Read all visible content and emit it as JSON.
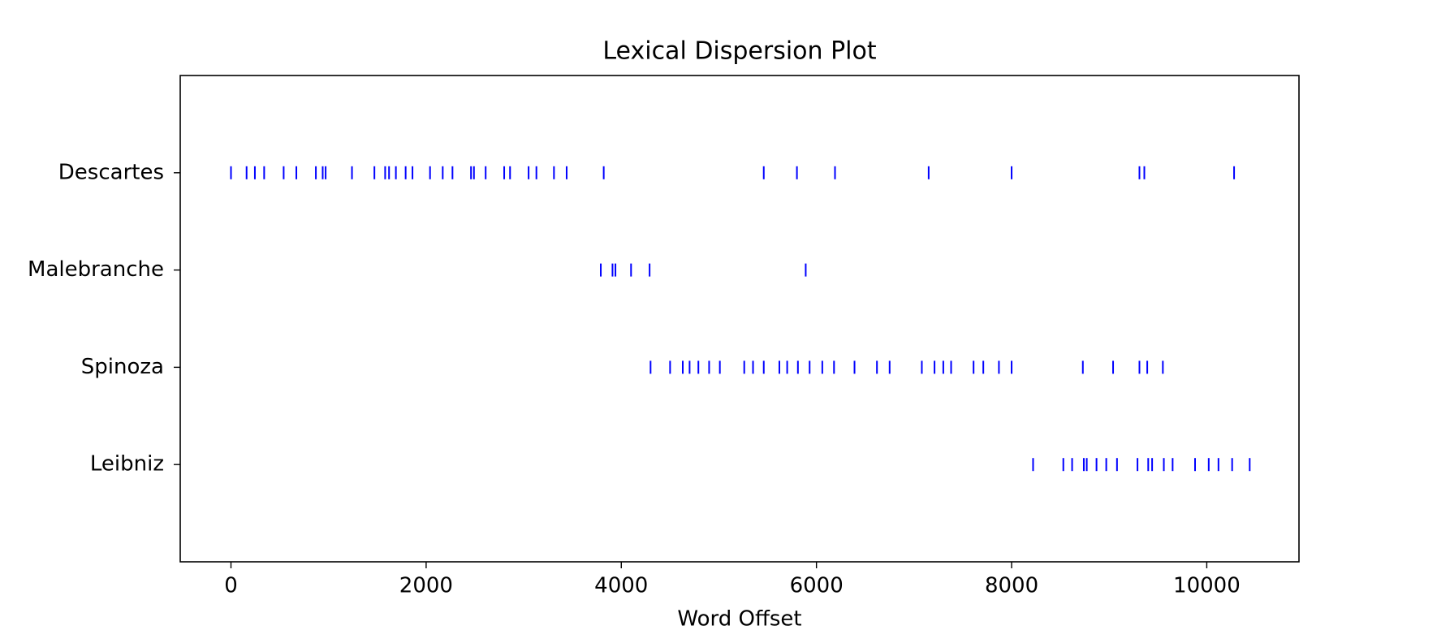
{
  "chart_data": {
    "type": "dispersion",
    "title": "Lexical Dispersion Plot",
    "x_label": "Word Offset",
    "xlim": [
      -520,
      10945
    ],
    "xticks": [
      0,
      2000,
      4000,
      6000,
      8000,
      10000
    ],
    "label_color": "#0000ff",
    "series": [
      {
        "name": "Descartes",
        "color": "#0000ff",
        "values": [
          0,
          160,
          245,
          340,
          540,
          670,
          870,
          940,
          970,
          1240,
          1470,
          1580,
          1620,
          1690,
          1790,
          1860,
          2040,
          2170,
          2270,
          2460,
          2490,
          2610,
          2800,
          2860,
          3050,
          3130,
          3310,
          3440,
          3820,
          5460,
          5800,
          6190,
          7150,
          8000,
          9310,
          9360,
          10280
        ]
      },
      {
        "name": "Malebranche",
        "color": "#0000ff",
        "values": [
          3790,
          3910,
          3940,
          4100,
          4290,
          5890
        ]
      },
      {
        "name": "Spinoza",
        "color": "#0000ff",
        "values": [
          4300,
          4500,
          4630,
          4700,
          4790,
          4900,
          5010,
          5260,
          5350,
          5460,
          5620,
          5700,
          5810,
          5930,
          6060,
          6180,
          6390,
          6620,
          6750,
          7080,
          7210,
          7300,
          7380,
          7610,
          7710,
          7870,
          8000,
          8730,
          9040,
          9310,
          9390,
          9550
        ]
      },
      {
        "name": "Leibniz",
        "color": "#0000ff",
        "values": [
          8220,
          8530,
          8620,
          8740,
          8770,
          8870,
          8970,
          9080,
          9290,
          9400,
          9440,
          9560,
          9650,
          9880,
          10020,
          10120,
          10260,
          10440
        ]
      }
    ]
  }
}
